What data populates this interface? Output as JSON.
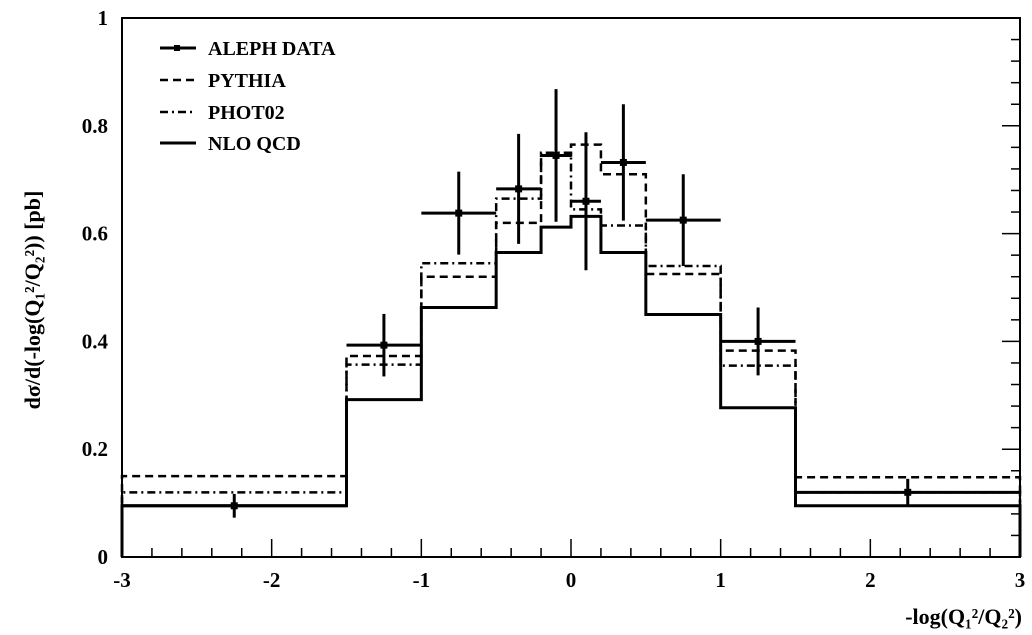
{
  "chart_data": {
    "type": "line",
    "ylabel": "dσ/d(-log(Q₁²/Q₂²)) [pb]",
    "xlabel": "-log(Q₁²/Q₂²)",
    "xlim": [
      -3,
      3
    ],
    "ylim": [
      0,
      1
    ],
    "xticks": [
      -3,
      -2,
      -1,
      0,
      1,
      2,
      3
    ],
    "yticks": [
      0,
      0.2,
      0.4,
      0.6,
      0.8,
      1
    ],
    "xtick_labels": [
      "-3",
      "-2",
      "-1",
      "0",
      "1",
      "2",
      "3"
    ],
    "ytick_labels": [
      "0",
      "0.2",
      "0.4",
      "0.6",
      "0.8",
      "1"
    ],
    "legend": {
      "placement": "top-left",
      "entries": [
        "ALEPH DATA",
        "PYTHIA",
        "PHOT02",
        "NLO QCD"
      ]
    },
    "series": [
      {
        "name": "ALEPH DATA",
        "style": "points-with-errors",
        "points": [
          {
            "x": -2.25,
            "y": 0.095,
            "xerr": 0.75,
            "yerr": 0.022
          },
          {
            "x": -1.25,
            "y": 0.393,
            "xerr": 0.25,
            "yerr": 0.058
          },
          {
            "x": -0.75,
            "y": 0.638,
            "xerr": 0.25,
            "yerr": 0.077
          },
          {
            "x": -0.35,
            "y": 0.683,
            "xerr": 0.15,
            "yerr": 0.102
          },
          {
            "x": -0.1,
            "y": 0.745,
            "xerr": 0.1,
            "yerr": 0.123
          },
          {
            "x": 0.1,
            "y": 0.66,
            "xerr": 0.1,
            "yerr": 0.128
          },
          {
            "x": 0.35,
            "y": 0.732,
            "xerr": 0.15,
            "yerr": 0.108
          },
          {
            "x": 0.75,
            "y": 0.625,
            "xerr": 0.25,
            "yerr": 0.085
          },
          {
            "x": 1.25,
            "y": 0.4,
            "xerr": 0.25,
            "yerr": 0.063
          },
          {
            "x": 2.25,
            "y": 0.12,
            "xerr": 0.75,
            "yerr": 0.025
          }
        ]
      },
      {
        "name": "PYTHIA",
        "style": "dashed",
        "bins": [
          -3,
          -1.5,
          -1,
          -0.5,
          -0.2,
          0,
          0.2,
          0.5,
          1,
          1.5,
          3
        ],
        "values": [
          0.15,
          0.373,
          0.52,
          0.62,
          0.745,
          0.765,
          0.71,
          0.525,
          0.383,
          0.148
        ]
      },
      {
        "name": "PHOT02",
        "style": "dashdot",
        "bins": [
          -3,
          -1.5,
          -1,
          -0.5,
          -0.2,
          0,
          0.2,
          0.5,
          1,
          1.5,
          3
        ],
        "values": [
          0.12,
          0.357,
          0.545,
          0.665,
          0.75,
          0.645,
          0.615,
          0.54,
          0.355,
          0.12
        ]
      },
      {
        "name": "NLO QCD",
        "style": "solid",
        "bins": [
          -3,
          -1.5,
          -1,
          -0.5,
          -0.2,
          0,
          0.2,
          0.5,
          1,
          1.5,
          3
        ],
        "values": [
          0.095,
          0.292,
          0.463,
          0.565,
          0.612,
          0.632,
          0.565,
          0.45,
          0.277,
          0.095
        ]
      }
    ]
  }
}
